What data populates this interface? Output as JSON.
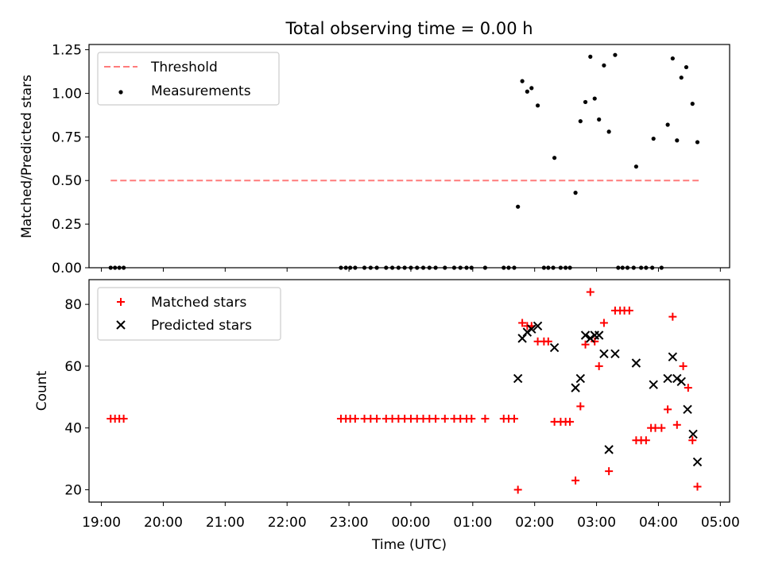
{
  "title": "Total observing time = 0.00 h",
  "xlabel": "Time (UTC)",
  "x_tick_labels": [
    "19:00",
    "20:00",
    "21:00",
    "22:00",
    "23:00",
    "00:00",
    "01:00",
    "02:00",
    "03:00",
    "04:00",
    "05:00"
  ],
  "colors": {
    "threshold": "#ff7b7b",
    "measurements": "#000000",
    "matched": "#ff0000",
    "predicted": "#000000"
  },
  "chart_data": [
    {
      "type": "scatter",
      "ylabel": "Matched/Predicted stars",
      "ylim": [
        0,
        1.28
      ],
      "xlim_hours": [
        18.8,
        29.15
      ],
      "y_tick_labels": [
        "0.00",
        "0.25",
        "0.50",
        "0.75",
        "1.00",
        "1.25"
      ],
      "y_ticks": [
        0,
        0.25,
        0.5,
        0.75,
        1.0,
        1.25
      ],
      "legend": {
        "position": "top-left",
        "entries": [
          "Threshold",
          "Measurements"
        ]
      },
      "threshold": {
        "name": "Threshold",
        "value": 0.5,
        "x_range": [
          19.15,
          28.65
        ]
      },
      "series": [
        {
          "name": "Measurements",
          "points": [
            [
              19.15,
              0
            ],
            [
              19.22,
              0
            ],
            [
              19.29,
              0
            ],
            [
              19.36,
              0
            ],
            [
              22.87,
              0
            ],
            [
              22.95,
              0
            ],
            [
              23.02,
              0
            ],
            [
              23.1,
              0
            ],
            [
              23.25,
              0
            ],
            [
              23.35,
              0
            ],
            [
              23.45,
              0
            ],
            [
              23.6,
              0
            ],
            [
              23.7,
              0
            ],
            [
              23.8,
              0
            ],
            [
              23.9,
              0
            ],
            [
              24.0,
              0
            ],
            [
              24.1,
              0
            ],
            [
              24.2,
              0
            ],
            [
              24.3,
              0
            ],
            [
              24.4,
              0
            ],
            [
              24.55,
              0
            ],
            [
              24.7,
              0
            ],
            [
              24.8,
              0
            ],
            [
              24.9,
              0
            ],
            [
              24.98,
              0
            ],
            [
              25.2,
              0
            ],
            [
              25.5,
              0
            ],
            [
              25.58,
              0
            ],
            [
              25.67,
              0
            ],
            [
              25.73,
              0.35
            ],
            [
              25.8,
              1.07
            ],
            [
              25.88,
              1.01
            ],
            [
              25.95,
              1.03
            ],
            [
              26.05,
              0.93
            ],
            [
              26.15,
              0
            ],
            [
              26.22,
              0
            ],
            [
              26.3,
              0
            ],
            [
              26.32,
              0.63
            ],
            [
              26.42,
              0
            ],
            [
              26.5,
              0
            ],
            [
              26.57,
              0
            ],
            [
              26.66,
              0.43
            ],
            [
              26.74,
              0.84
            ],
            [
              26.82,
              0.95
            ],
            [
              26.9,
              1.21
            ],
            [
              26.97,
              0.97
            ],
            [
              27.04,
              0.85
            ],
            [
              27.12,
              1.16
            ],
            [
              27.2,
              0.78
            ],
            [
              27.3,
              1.22
            ],
            [
              27.35,
              0
            ],
            [
              27.42,
              0
            ],
            [
              27.5,
              0
            ],
            [
              27.6,
              0
            ],
            [
              27.64,
              0.58
            ],
            [
              27.72,
              0
            ],
            [
              27.8,
              0
            ],
            [
              27.9,
              0
            ],
            [
              27.92,
              0.74
            ],
            [
              28.05,
              0
            ],
            [
              28.15,
              0.82
            ],
            [
              28.23,
              1.2
            ],
            [
              28.3,
              0.73
            ],
            [
              28.37,
              1.09
            ],
            [
              28.45,
              1.15
            ],
            [
              28.55,
              0.94
            ],
            [
              28.63,
              0.72
            ]
          ]
        }
      ]
    },
    {
      "type": "scatter",
      "ylabel": "Count",
      "ylim": [
        16,
        88
      ],
      "xlim_hours": [
        18.8,
        29.15
      ],
      "y_tick_labels": [
        "20",
        "40",
        "60",
        "80"
      ],
      "y_ticks": [
        20,
        40,
        60,
        80
      ],
      "legend": {
        "position": "top-left",
        "entries": [
          "Matched stars",
          "Predicted stars"
        ]
      },
      "series": [
        {
          "name": "Matched stars",
          "marker": "plus",
          "points": [
            [
              19.15,
              43
            ],
            [
              19.22,
              43
            ],
            [
              19.29,
              43
            ],
            [
              19.36,
              43
            ],
            [
              22.87,
              43
            ],
            [
              22.95,
              43
            ],
            [
              23.02,
              43
            ],
            [
              23.1,
              43
            ],
            [
              23.25,
              43
            ],
            [
              23.35,
              43
            ],
            [
              23.45,
              43
            ],
            [
              23.6,
              43
            ],
            [
              23.7,
              43
            ],
            [
              23.8,
              43
            ],
            [
              23.9,
              43
            ],
            [
              24.0,
              43
            ],
            [
              24.1,
              43
            ],
            [
              24.2,
              43
            ],
            [
              24.3,
              43
            ],
            [
              24.4,
              43
            ],
            [
              24.55,
              43
            ],
            [
              24.7,
              43
            ],
            [
              24.8,
              43
            ],
            [
              24.9,
              43
            ],
            [
              24.98,
              43
            ],
            [
              25.2,
              43
            ],
            [
              25.5,
              43
            ],
            [
              25.58,
              43
            ],
            [
              25.67,
              43
            ],
            [
              25.73,
              20
            ],
            [
              25.8,
              74
            ],
            [
              25.88,
              73
            ],
            [
              25.95,
              73
            ],
            [
              26.05,
              68
            ],
            [
              26.15,
              68
            ],
            [
              26.22,
              68
            ],
            [
              26.32,
              42
            ],
            [
              26.42,
              42
            ],
            [
              26.5,
              42
            ],
            [
              26.57,
              42
            ],
            [
              26.66,
              23
            ],
            [
              26.74,
              47
            ],
            [
              26.82,
              67
            ],
            [
              26.9,
              84
            ],
            [
              26.97,
              68
            ],
            [
              27.04,
              60
            ],
            [
              27.12,
              74
            ],
            [
              27.2,
              26
            ],
            [
              27.3,
              78
            ],
            [
              27.38,
              78
            ],
            [
              27.45,
              78
            ],
            [
              27.53,
              78
            ],
            [
              27.64,
              36
            ],
            [
              27.72,
              36
            ],
            [
              27.8,
              36
            ],
            [
              27.88,
              40
            ],
            [
              27.95,
              40
            ],
            [
              28.05,
              40
            ],
            [
              28.15,
              46
            ],
            [
              28.23,
              76
            ],
            [
              28.3,
              41
            ],
            [
              28.4,
              60
            ],
            [
              28.48,
              53
            ],
            [
              28.55,
              36
            ],
            [
              28.63,
              21
            ]
          ]
        },
        {
          "name": "Predicted stars",
          "marker": "x",
          "points": [
            [
              25.73,
              56
            ],
            [
              25.8,
              69
            ],
            [
              25.88,
              71
            ],
            [
              25.95,
              72
            ],
            [
              26.05,
              73
            ],
            [
              26.32,
              66
            ],
            [
              26.66,
              53
            ],
            [
              26.74,
              56
            ],
            [
              26.82,
              70
            ],
            [
              26.9,
              69
            ],
            [
              26.97,
              70
            ],
            [
              27.04,
              70
            ],
            [
              27.12,
              64
            ],
            [
              27.2,
              33
            ],
            [
              27.3,
              64
            ],
            [
              27.64,
              61
            ],
            [
              27.92,
              54
            ],
            [
              28.15,
              56
            ],
            [
              28.23,
              63
            ],
            [
              28.3,
              56
            ],
            [
              28.37,
              55
            ],
            [
              28.47,
              46
            ],
            [
              28.56,
              38
            ],
            [
              28.63,
              29
            ]
          ]
        }
      ]
    }
  ]
}
